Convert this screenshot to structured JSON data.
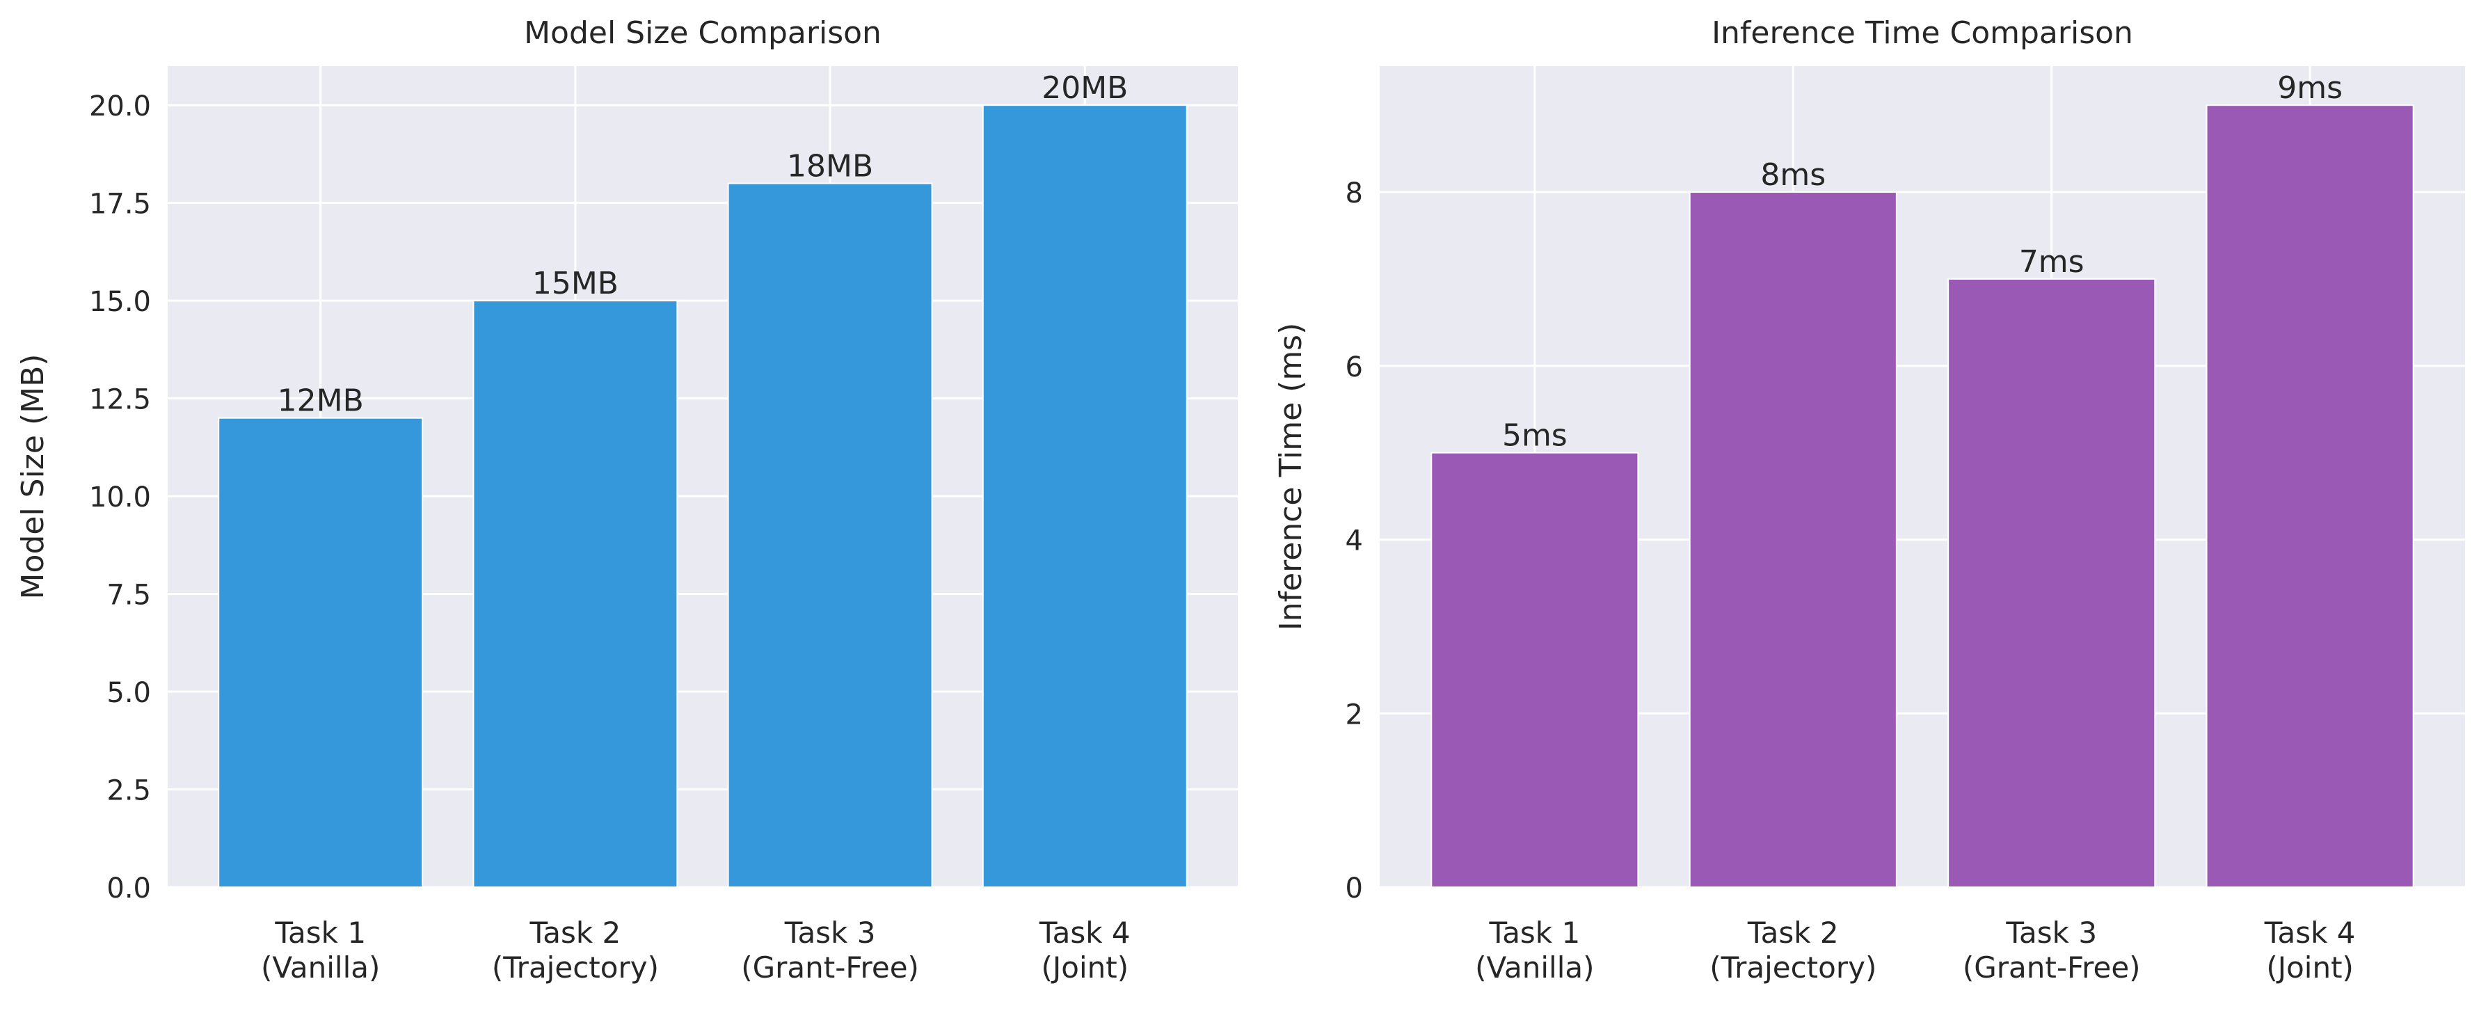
{
  "colors": {
    "plot_background": "#eaeaf2",
    "grid": "#ffffff",
    "text": "#262626",
    "bar_size": "#3498db",
    "bar_time": "#9b59b6"
  },
  "chart_data": [
    {
      "type": "bar",
      "title": "Model Size Comparison",
      "xlabel": "",
      "ylabel": "Model Size (MB)",
      "categories": [
        "Task 1\n(Vanilla)",
        "Task 2\n(Trajectory)",
        "Task 3\n(Grant-Free)",
        "Task 4\n(Joint)"
      ],
      "values": [
        12,
        15,
        18,
        20
      ],
      "data_labels": [
        "12MB",
        "15MB",
        "18MB",
        "20MB"
      ],
      "ylim": [
        0,
        21
      ],
      "yticks": [
        0.0,
        2.5,
        5.0,
        7.5,
        10.0,
        12.5,
        15.0,
        17.5,
        20.0
      ],
      "ytick_labels": [
        "0.0",
        "2.5",
        "5.0",
        "7.5",
        "10.0",
        "12.5",
        "15.0",
        "17.5",
        "20.0"
      ],
      "grid": true,
      "color": "#3498db"
    },
    {
      "type": "bar",
      "title": "Inference Time Comparison",
      "xlabel": "",
      "ylabel": "Inference Time (ms)",
      "categories": [
        "Task 1\n(Vanilla)",
        "Task 2\n(Trajectory)",
        "Task 3\n(Grant-Free)",
        "Task 4\n(Joint)"
      ],
      "values": [
        5,
        8,
        7,
        9
      ],
      "data_labels": [
        "5ms",
        "8ms",
        "7ms",
        "9ms"
      ],
      "ylim": [
        0,
        9.45
      ],
      "yticks": [
        0,
        2,
        4,
        6,
        8
      ],
      "ytick_labels": [
        "0",
        "2",
        "4",
        "6",
        "8"
      ],
      "grid": true,
      "color": "#9b59b6"
    }
  ]
}
